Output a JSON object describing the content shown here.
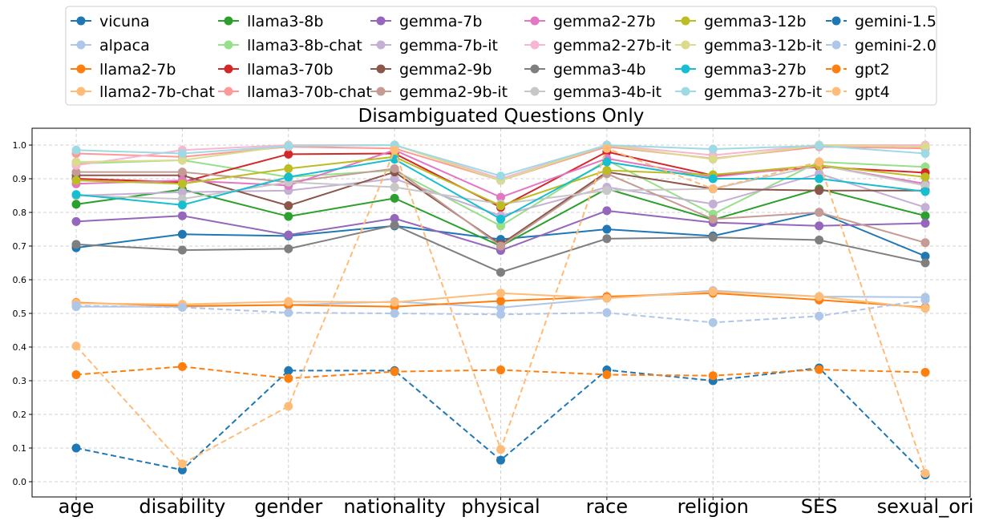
{
  "chart_data": {
    "type": "line",
    "title": "Disambiguated Questions Only",
    "xlabel": "",
    "ylabel": "",
    "categories": [
      "age",
      "disability",
      "gender",
      "nationality",
      "physical",
      "race",
      "religion",
      "SES",
      "sexual_ori"
    ],
    "ylim": [
      -0.02,
      1.04
    ],
    "yticks": [
      "0.0",
      "0.1",
      "0.2",
      "0.3",
      "0.4",
      "0.5",
      "0.6",
      "0.7",
      "0.8",
      "0.9",
      "1.0"
    ],
    "grid": true,
    "legend_position": "top",
    "series": [
      {
        "name": "vicuna",
        "color": "#1f77b4",
        "dashed": false,
        "values": [
          0.695,
          0.735,
          0.73,
          0.76,
          0.72,
          0.75,
          0.73,
          0.8,
          0.67
        ]
      },
      {
        "name": "alpaca",
        "color": "#aec7e8",
        "dashed": false,
        "values": [
          0.52,
          0.52,
          0.525,
          0.535,
          0.517,
          0.545,
          0.568,
          0.55,
          0.548
        ]
      },
      {
        "name": "llama2-7b",
        "color": "#ff7f0e",
        "dashed": false,
        "values": [
          0.532,
          0.522,
          0.525,
          0.52,
          0.537,
          0.55,
          0.56,
          0.54,
          0.518
        ]
      },
      {
        "name": "llama2-7b-chat",
        "color": "#ffbb78",
        "dashed": false,
        "values": [
          0.53,
          0.527,
          0.535,
          0.533,
          0.56,
          0.545,
          0.565,
          0.55,
          0.515
        ]
      },
      {
        "name": "llama3-8b",
        "color": "#2ca02c",
        "dashed": false,
        "values": [
          0.824,
          0.868,
          0.788,
          0.842,
          0.7,
          0.87,
          0.778,
          0.87,
          0.79
        ]
      },
      {
        "name": "llama3-8b-chat",
        "color": "#98df8a",
        "dashed": false,
        "values": [
          0.945,
          0.955,
          0.905,
          0.925,
          0.76,
          0.955,
          0.795,
          0.95,
          0.935
        ]
      },
      {
        "name": "llama3-70b",
        "color": "#d62728",
        "dashed": false,
        "values": [
          0.9,
          0.89,
          0.973,
          0.975,
          0.815,
          0.98,
          0.91,
          0.935,
          0.918
        ]
      },
      {
        "name": "llama3-70b-chat",
        "color": "#ff9896",
        "dashed": false,
        "values": [
          0.975,
          0.965,
          0.995,
          0.99,
          0.895,
          0.995,
          0.96,
          0.995,
          0.99
        ]
      },
      {
        "name": "gemma-7b",
        "color": "#9467bd",
        "dashed": false,
        "values": [
          0.773,
          0.79,
          0.733,
          0.782,
          0.687,
          0.805,
          0.77,
          0.76,
          0.768
        ]
      },
      {
        "name": "gemma-7b-it",
        "color": "#c5b0d5",
        "dashed": false,
        "values": [
          0.85,
          0.86,
          0.865,
          0.9,
          0.79,
          0.875,
          0.825,
          0.915,
          0.815
        ]
      },
      {
        "name": "gemma2-9b",
        "color": "#8c564b",
        "dashed": false,
        "values": [
          0.91,
          0.91,
          0.82,
          0.92,
          0.705,
          0.92,
          0.87,
          0.865,
          0.865
        ]
      },
      {
        "name": "gemma2-9b-it",
        "color": "#c49c94",
        "dashed": false,
        "values": [
          0.92,
          0.92,
          0.89,
          0.93,
          0.7,
          0.915,
          0.78,
          0.8,
          0.71
        ]
      },
      {
        "name": "gemma2-27b",
        "color": "#e377c2",
        "dashed": false,
        "values": [
          0.885,
          0.895,
          0.88,
          0.985,
          0.845,
          0.96,
          0.905,
          0.94,
          0.885
        ]
      },
      {
        "name": "gemma2-27b-it",
        "color": "#f7b6d2",
        "dashed": false,
        "values": [
          0.94,
          0.985,
          1.0,
          1.0,
          0.9,
          1.0,
          0.97,
          1.0,
          1.0
        ]
      },
      {
        "name": "gemma3-4b",
        "color": "#7f7f7f",
        "dashed": false,
        "values": [
          0.705,
          0.688,
          0.692,
          0.762,
          0.622,
          0.722,
          0.726,
          0.718,
          0.65
        ]
      },
      {
        "name": "gemma3-4b-it",
        "color": "#c7c7c7",
        "dashed": false,
        "values": [
          0.85,
          0.84,
          0.89,
          0.875,
          0.825,
          0.865,
          0.87,
          0.94,
          0.88
        ]
      },
      {
        "name": "gemma3-12b",
        "color": "#bcbd22",
        "dashed": false,
        "values": [
          0.895,
          0.885,
          0.93,
          0.965,
          0.82,
          0.925,
          0.912,
          0.94,
          0.905
        ]
      },
      {
        "name": "gemma3-12b-it",
        "color": "#dbdb8d",
        "dashed": false,
        "values": [
          0.95,
          0.955,
          0.998,
          1.0,
          0.895,
          1.0,
          0.958,
          1.0,
          0.995
        ]
      },
      {
        "name": "gemma3-27b",
        "color": "#17becf",
        "dashed": false,
        "values": [
          0.853,
          0.822,
          0.905,
          0.958,
          0.78,
          0.95,
          0.9,
          0.9,
          0.862
        ]
      },
      {
        "name": "gemma3-27b-it",
        "color": "#9edae5",
        "dashed": false,
        "values": [
          0.985,
          0.975,
          0.997,
          1.0,
          0.908,
          1.0,
          0.988,
          0.998,
          0.975
        ]
      },
      {
        "name": "gemini-1.5",
        "color": "#1f77b4",
        "dashed": true,
        "values": [
          0.1,
          0.035,
          0.33,
          0.33,
          0.064,
          0.332,
          0.3,
          0.338,
          0.02
        ]
      },
      {
        "name": "gemini-2.0",
        "color": "#aec7e8",
        "dashed": true,
        "values": [
          0.523,
          0.518,
          0.502,
          0.5,
          0.497,
          0.502,
          0.473,
          0.492,
          0.54
        ]
      },
      {
        "name": "gpt2",
        "color": "#ff7f0e",
        "dashed": true,
        "values": [
          0.318,
          0.342,
          0.307,
          0.327,
          0.332,
          0.318,
          0.315,
          0.333,
          0.325
        ]
      },
      {
        "name": "gpt4",
        "color": "#ffbb78",
        "dashed": true,
        "values": [
          0.403,
          0.053,
          0.224,
          0.985,
          0.096,
          0.99,
          0.87,
          0.95,
          0.025
        ]
      }
    ]
  }
}
